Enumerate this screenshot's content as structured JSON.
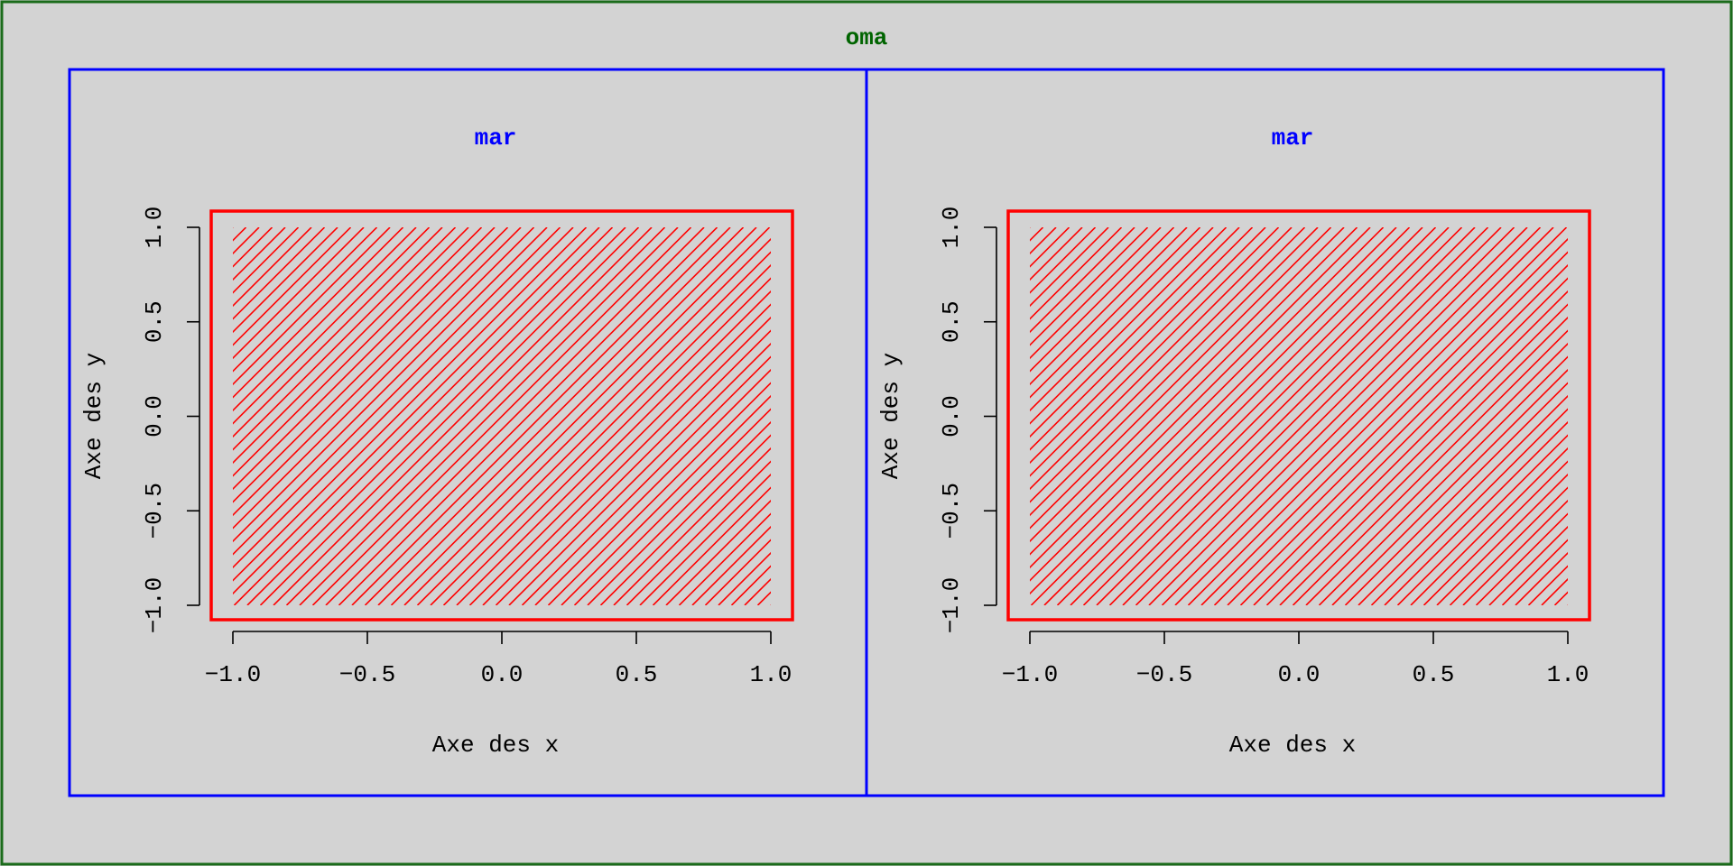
{
  "outer_margin_label": "oma",
  "colors": {
    "background": "#d3d3d3",
    "outer_frame": "#1a6b1a",
    "oma_label": "#006400",
    "figure_frame": "#0000ff",
    "mar_label": "#0000ff",
    "plot_frame": "#ff0000",
    "hatch": "#ff0000",
    "axis": "#000000"
  },
  "chart_data": [
    {
      "type": "area",
      "title": "mar",
      "xlabel": "Axe des x",
      "ylabel": "Axe des y",
      "xlim": [
        -1.0,
        1.0
      ],
      "ylim": [
        -1.0,
        1.0
      ],
      "x_ticks": [
        "-1.0",
        "-0.5",
        "0.0",
        "0.5",
        "1.0"
      ],
      "y_ticks": [
        "-1.0",
        "-0.5",
        "0.0",
        "0.5",
        "1.0"
      ],
      "grid": false,
      "fill": "diagonal hatch",
      "region": {
        "x": [
          -1.0,
          1.0
        ],
        "y": [
          -1.0,
          1.0
        ]
      }
    },
    {
      "type": "area",
      "title": "mar",
      "xlabel": "Axe des x",
      "ylabel": "Axe des y",
      "xlim": [
        -1.0,
        1.0
      ],
      "ylim": [
        -1.0,
        1.0
      ],
      "x_ticks": [
        "-1.0",
        "-0.5",
        "0.0",
        "0.5",
        "1.0"
      ],
      "y_ticks": [
        "-1.0",
        "-0.5",
        "0.0",
        "0.5",
        "1.0"
      ],
      "grid": false,
      "fill": "diagonal hatch",
      "region": {
        "x": [
          -1.0,
          1.0
        ],
        "y": [
          -1.0,
          1.0
        ]
      }
    }
  ]
}
